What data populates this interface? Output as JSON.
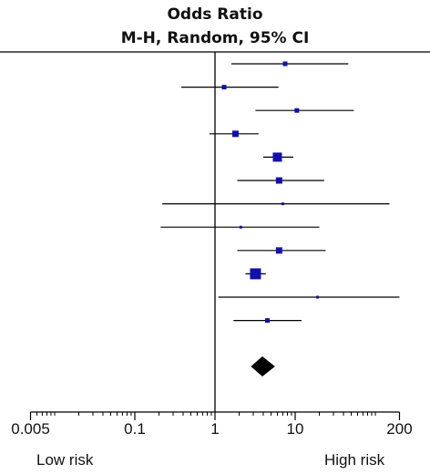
{
  "header": {
    "title": "Odds Ratio",
    "subtitle": "M-H, Random, 95% CI"
  },
  "labels": {
    "low": "Low risk",
    "high": "High risk"
  },
  "chart_data": {
    "type": "forest",
    "scale": "log",
    "xlim": [
      0.005,
      200
    ],
    "reference_line": 1,
    "ticks": [
      {
        "value": 0.005,
        "label": "0.005"
      },
      {
        "value": 0.1,
        "label": "0.1"
      },
      {
        "value": 1,
        "label": "1"
      },
      {
        "value": 10,
        "label": "10"
      },
      {
        "value": 200,
        "label": "200"
      }
    ],
    "studies": [
      {
        "or": 7.5,
        "lower": 1.6,
        "upper": 46,
        "weight": "small"
      },
      {
        "or": 1.3,
        "lower": 0.38,
        "upper": 6.2,
        "weight": "small"
      },
      {
        "or": 10.5,
        "lower": 3.2,
        "upper": 54,
        "weight": "small"
      },
      {
        "or": 1.8,
        "lower": 0.85,
        "upper": 3.5,
        "weight": "medium"
      },
      {
        "or": 6.0,
        "lower": 4.0,
        "upper": 9.5,
        "weight": "large"
      },
      {
        "or": 6.3,
        "lower": 1.9,
        "upper": 23,
        "weight": "medium"
      },
      {
        "or": 7.0,
        "lower": 0.22,
        "upper": 150,
        "weight": "tiny"
      },
      {
        "or": 2.1,
        "lower": 0.21,
        "upper": 20,
        "weight": "tiny"
      },
      {
        "or": 6.3,
        "lower": 1.9,
        "upper": 24,
        "weight": "medium"
      },
      {
        "or": 3.2,
        "lower": 2.4,
        "upper": 4.3,
        "weight": "largest"
      },
      {
        "or": 19,
        "lower": 1.1,
        "upper": 200,
        "weight": "tiny"
      },
      {
        "or": 4.5,
        "lower": 1.7,
        "upper": 12,
        "weight": "small"
      }
    ],
    "pooled": {
      "or": 3.9,
      "lower": 2.8,
      "upper": 5.6
    }
  }
}
